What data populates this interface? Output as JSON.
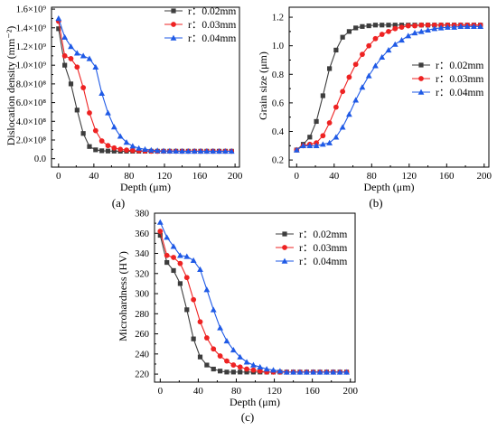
{
  "chart_data": [
    {
      "type": "line",
      "panel_label": "(a)",
      "xlabel": "Depth (μm)",
      "ylabel": "Dislocation density (mm⁻²)",
      "xlim": [
        -8,
        205
      ],
      "ylim": [
        -90000000.0,
        1620000000.0
      ],
      "x_ticks": [
        0,
        40,
        80,
        120,
        160,
        200
      ],
      "y_ticks": [
        0,
        200000000.0,
        400000000.0,
        600000000.0,
        800000000.0,
        1000000000.0,
        1200000000.0,
        1400000000.0,
        1600000000.0
      ],
      "y_tick_labels": [
        "0.0",
        "2.0×10⁸",
        "4.0×10⁸",
        "6.0×10⁸",
        "8.0×10⁸",
        "1.0×10⁹",
        "1.2×10⁹",
        "1.4×10⁹",
        "1.6×10⁹"
      ],
      "legend_position": "top-right",
      "grid": false,
      "series": [
        {
          "name": "r：0.02mm",
          "color": "#3d3d3d",
          "marker": "square",
          "x": [
            0,
            7,
            14,
            21,
            28,
            35,
            42,
            49,
            56,
            63,
            70,
            77,
            84,
            91,
            98,
            105,
            112,
            119,
            126,
            133,
            140,
            147,
            154,
            161,
            168,
            175,
            182,
            189,
            196
          ],
          "y": [
            1390000000.0,
            1000000000.0,
            800000000.0,
            520000000.0,
            270000000.0,
            130000000.0,
            95000000.0,
            85000000.0,
            82000000.0,
            81000000.0,
            80000000.0,
            80000000.0,
            80000000.0,
            80000000.0,
            80000000.0,
            80000000.0,
            80000000.0,
            80000000.0,
            80000000.0,
            80000000.0,
            80000000.0,
            80000000.0,
            80000000.0,
            80000000.0,
            80000000.0,
            80000000.0,
            80000000.0,
            80000000.0,
            80000000.0
          ]
        },
        {
          "name": "r：0.03mm",
          "color": "#ee2222",
          "marker": "circle",
          "x": [
            0,
            7,
            14,
            21,
            28,
            35,
            42,
            49,
            56,
            63,
            70,
            77,
            84,
            91,
            98,
            105,
            112,
            119,
            126,
            133,
            140,
            147,
            154,
            161,
            168,
            175,
            182,
            189,
            196
          ],
          "y": [
            1470000000.0,
            1100000000.0,
            1070000000.0,
            980000000.0,
            760000000.0,
            490000000.0,
            300000000.0,
            190000000.0,
            140000000.0,
            115000000.0,
            100000000.0,
            92000000.0,
            87000000.0,
            84000000.0,
            82000000.0,
            81000000.0,
            80000000.0,
            80000000.0,
            80000000.0,
            80000000.0,
            80000000.0,
            80000000.0,
            80000000.0,
            80000000.0,
            80000000.0,
            80000000.0,
            80000000.0,
            80000000.0,
            80000000.0
          ]
        },
        {
          "name": "r：0.04mm",
          "color": "#1f5ae6",
          "marker": "triangle",
          "x": [
            0,
            7,
            14,
            21,
            28,
            35,
            42,
            49,
            56,
            63,
            70,
            77,
            84,
            91,
            98,
            105,
            112,
            119,
            126,
            133,
            140,
            147,
            154,
            161,
            168,
            175,
            182,
            189,
            196
          ],
          "y": [
            1500000000.0,
            1300000000.0,
            1200000000.0,
            1130000000.0,
            1100000000.0,
            1070000000.0,
            980000000.0,
            700000000.0,
            490000000.0,
            340000000.0,
            240000000.0,
            175000000.0,
            135000000.0,
            112000000.0,
            100000000.0,
            92000000.0,
            87000000.0,
            84000000.0,
            82000000.0,
            81000000.0,
            80000000.0,
            80000000.0,
            80000000.0,
            80000000.0,
            80000000.0,
            80000000.0,
            80000000.0,
            80000000.0,
            80000000.0
          ]
        }
      ]
    },
    {
      "type": "line",
      "panel_label": "(b)",
      "xlabel": "Depth (μm)",
      "ylabel": "Grain size (μm)",
      "xlim": [
        -8,
        205
      ],
      "ylim": [
        0.15,
        1.27
      ],
      "x_ticks": [
        0,
        40,
        80,
        120,
        160,
        200
      ],
      "y_ticks": [
        0.2,
        0.4,
        0.6,
        0.8,
        1.0,
        1.2
      ],
      "y_tick_labels": [
        "0.2",
        "0.4",
        "0.6",
        "0.8",
        "1.0",
        "1.2"
      ],
      "legend_position": "right",
      "grid": false,
      "series": [
        {
          "name": "r：0.02mm",
          "color": "#3d3d3d",
          "marker": "square",
          "x": [
            0,
            7,
            14,
            21,
            28,
            35,
            42,
            49,
            56,
            63,
            70,
            77,
            84,
            91,
            98,
            105,
            112,
            119,
            126,
            133,
            140,
            147,
            154,
            161,
            168,
            175,
            182,
            189,
            196
          ],
          "y": [
            0.27,
            0.31,
            0.36,
            0.47,
            0.65,
            0.84,
            0.97,
            1.06,
            1.1,
            1.125,
            1.135,
            1.14,
            1.145,
            1.145,
            1.145,
            1.145,
            1.145,
            1.145,
            1.145,
            1.145,
            1.145,
            1.145,
            1.145,
            1.145,
            1.145,
            1.145,
            1.145,
            1.145,
            1.145
          ]
        },
        {
          "name": "r：0.03mm",
          "color": "#ee2222",
          "marker": "circle",
          "x": [
            0,
            7,
            14,
            21,
            28,
            35,
            42,
            49,
            56,
            63,
            70,
            77,
            84,
            91,
            98,
            105,
            112,
            119,
            126,
            133,
            140,
            147,
            154,
            161,
            168,
            175,
            182,
            189,
            196
          ],
          "y": [
            0.27,
            0.3,
            0.31,
            0.32,
            0.37,
            0.46,
            0.57,
            0.68,
            0.78,
            0.87,
            0.94,
            1.0,
            1.05,
            1.08,
            1.1,
            1.12,
            1.13,
            1.14,
            1.14,
            1.145,
            1.145,
            1.145,
            1.145,
            1.145,
            1.145,
            1.145,
            1.145,
            1.145,
            1.145
          ]
        },
        {
          "name": "r：0.04mm",
          "color": "#1f5ae6",
          "marker": "triangle",
          "x": [
            0,
            7,
            14,
            21,
            28,
            35,
            42,
            49,
            56,
            63,
            70,
            77,
            84,
            91,
            98,
            105,
            112,
            119,
            126,
            133,
            140,
            147,
            154,
            161,
            168,
            175,
            182,
            189,
            196
          ],
          "y": [
            0.27,
            0.3,
            0.3,
            0.3,
            0.31,
            0.32,
            0.36,
            0.43,
            0.52,
            0.62,
            0.71,
            0.79,
            0.86,
            0.92,
            0.97,
            1.01,
            1.04,
            1.07,
            1.09,
            1.1,
            1.11,
            1.12,
            1.125,
            1.13,
            1.13,
            1.135,
            1.135,
            1.135,
            1.135
          ]
        }
      ]
    },
    {
      "type": "line",
      "panel_label": "(c)",
      "xlabel": "Depth (μm)",
      "ylabel": "Microhardness (HV)",
      "xlim": [
        -6,
        205
      ],
      "ylim": [
        212,
        380
      ],
      "x_ticks": [
        0,
        40,
        80,
        120,
        160,
        200
      ],
      "y_ticks": [
        220,
        240,
        260,
        280,
        300,
        320,
        340,
        360,
        380
      ],
      "y_tick_labels": [
        "220",
        "240",
        "260",
        "280",
        "300",
        "320",
        "340",
        "360",
        "380"
      ],
      "legend_position": "top-right",
      "grid": false,
      "series": [
        {
          "name": "r：0.02mm",
          "color": "#3d3d3d",
          "marker": "square",
          "x": [
            0,
            7,
            14,
            21,
            28,
            35,
            42,
            49,
            56,
            63,
            70,
            77,
            84,
            91,
            98,
            105,
            112,
            119,
            126,
            133,
            140,
            147,
            154,
            161,
            168,
            175,
            182,
            189,
            196
          ],
          "y": [
            358,
            331,
            323,
            310,
            284,
            255,
            237,
            229,
            225,
            223,
            222,
            222,
            222,
            222,
            222,
            222,
            222,
            222,
            222,
            222,
            222,
            222,
            222,
            222,
            222,
            222,
            222,
            222,
            222
          ]
        },
        {
          "name": "r：0.03mm",
          "color": "#ee2222",
          "marker": "circle",
          "x": [
            0,
            7,
            14,
            21,
            28,
            35,
            42,
            49,
            56,
            63,
            70,
            77,
            84,
            91,
            98,
            105,
            112,
            119,
            126,
            133,
            140,
            147,
            154,
            161,
            168,
            175,
            182,
            189,
            196
          ],
          "y": [
            362,
            338,
            336,
            330,
            316,
            294,
            272,
            256,
            245,
            238,
            233,
            229,
            227,
            225,
            224,
            223,
            222,
            222,
            222,
            222,
            222,
            222,
            222,
            222,
            222,
            222,
            222,
            222,
            222
          ]
        },
        {
          "name": "r：0.04mm",
          "color": "#1f5ae6",
          "marker": "triangle",
          "x": [
            0,
            7,
            14,
            21,
            28,
            35,
            42,
            49,
            56,
            63,
            70,
            77,
            84,
            91,
            98,
            105,
            112,
            119,
            126,
            133,
            140,
            147,
            154,
            161,
            168,
            175,
            182,
            189,
            196
          ],
          "y": [
            371,
            356,
            347,
            338,
            337,
            333,
            324,
            304,
            284,
            266,
            253,
            244,
            237,
            232,
            229,
            227,
            225,
            224,
            223,
            222,
            222,
            222,
            222,
            222,
            222,
            222,
            222,
            222,
            222
          ]
        }
      ]
    }
  ]
}
